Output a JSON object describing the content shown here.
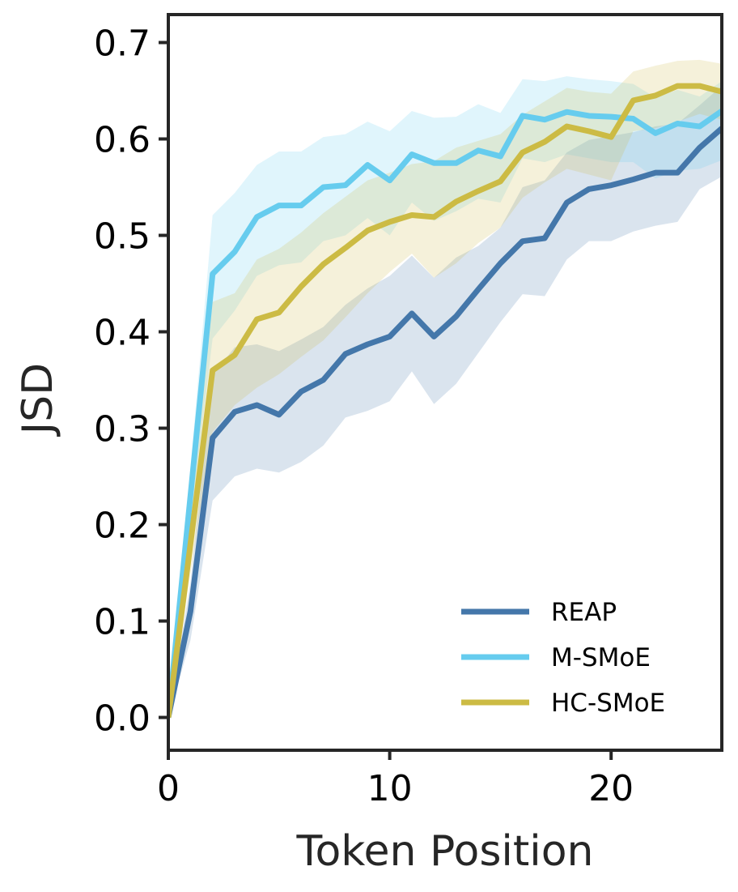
{
  "chart_data": {
    "type": "line",
    "title": "",
    "xlabel": "Token Position",
    "ylabel": "JSD",
    "xlim": [
      0,
      25
    ],
    "ylim": [
      -0.034,
      0.729
    ],
    "xticks": [
      0,
      10,
      20
    ],
    "xtick_labels": [
      "0",
      "10",
      "20"
    ],
    "yticks": [
      0.0,
      0.1,
      0.2,
      0.3,
      0.4,
      0.5,
      0.6,
      0.7
    ],
    "ytick_labels": [
      "0.0",
      "0.1",
      "0.2",
      "0.3",
      "0.4",
      "0.5",
      "0.6",
      "0.7"
    ],
    "grid": false,
    "legend_position": "lower-right",
    "x": [
      0,
      1,
      2,
      3,
      4,
      5,
      6,
      7,
      8,
      9,
      10,
      11,
      12,
      13,
      14,
      15,
      16,
      17,
      18,
      19,
      20,
      21,
      22,
      23,
      24,
      25
    ],
    "series": [
      {
        "name": "REAP",
        "color": "#4477AA",
        "values": [
          0.0,
          0.11,
          0.29,
          0.317,
          0.324,
          0.314,
          0.338,
          0.35,
          0.377,
          0.387,
          0.395,
          0.419,
          0.395,
          0.416,
          0.444,
          0.471,
          0.494,
          0.497,
          0.534,
          0.548,
          0.552,
          0.558,
          0.565,
          0.565,
          0.591,
          0.611
        ],
        "lower": [
          0.0,
          0.08,
          0.225,
          0.25,
          0.258,
          0.254,
          0.265,
          0.282,
          0.311,
          0.318,
          0.328,
          0.359,
          0.325,
          0.346,
          0.378,
          0.41,
          0.439,
          0.437,
          0.475,
          0.494,
          0.494,
          0.504,
          0.51,
          0.514,
          0.548,
          0.561
        ],
        "upper": [
          0.0,
          0.14,
          0.355,
          0.384,
          0.387,
          0.38,
          0.392,
          0.405,
          0.428,
          0.445,
          0.458,
          0.479,
          0.456,
          0.477,
          0.489,
          0.508,
          0.55,
          0.557,
          0.586,
          0.599,
          0.603,
          0.607,
          0.613,
          0.616,
          0.635,
          0.655
        ]
      },
      {
        "name": "M-SMoE",
        "color": "#66CCEE",
        "values": [
          0.0,
          0.23,
          0.46,
          0.483,
          0.519,
          0.531,
          0.531,
          0.55,
          0.552,
          0.573,
          0.557,
          0.584,
          0.575,
          0.575,
          0.588,
          0.582,
          0.624,
          0.62,
          0.628,
          0.624,
          0.623,
          0.621,
          0.606,
          0.616,
          0.613,
          0.629
        ],
        "lower": [
          0.0,
          0.2,
          0.393,
          0.422,
          0.458,
          0.469,
          0.472,
          0.494,
          0.5,
          0.518,
          0.5,
          0.534,
          0.515,
          0.525,
          0.538,
          0.534,
          0.58,
          0.576,
          0.584,
          0.58,
          0.576,
          0.576,
          0.559,
          0.567,
          0.569,
          0.578
        ],
        "upper": [
          0.0,
          0.26,
          0.521,
          0.544,
          0.573,
          0.587,
          0.587,
          0.602,
          0.605,
          0.618,
          0.608,
          0.629,
          0.622,
          0.623,
          0.636,
          0.627,
          0.662,
          0.66,
          0.665,
          0.662,
          0.66,
          0.657,
          0.643,
          0.651,
          0.644,
          0.66
        ]
      },
      {
        "name": "HC-SMoE",
        "color": "#CCBB44",
        "values": [
          0.0,
          0.18,
          0.36,
          0.376,
          0.413,
          0.42,
          0.447,
          0.47,
          0.487,
          0.505,
          0.514,
          0.521,
          0.519,
          0.535,
          0.546,
          0.556,
          0.586,
          0.597,
          0.613,
          0.608,
          0.602,
          0.64,
          0.645,
          0.655,
          0.655,
          0.649
        ],
        "lower": [
          0.0,
          0.15,
          0.296,
          0.324,
          0.342,
          0.356,
          0.374,
          0.391,
          0.415,
          0.44,
          0.462,
          0.481,
          0.456,
          0.471,
          0.492,
          0.508,
          0.539,
          0.555,
          0.569,
          0.563,
          0.557,
          0.608,
          0.611,
          0.618,
          0.626,
          0.62
        ],
        "upper": [
          0.0,
          0.21,
          0.431,
          0.44,
          0.475,
          0.486,
          0.503,
          0.523,
          0.54,
          0.557,
          0.565,
          0.574,
          0.577,
          0.591,
          0.598,
          0.605,
          0.625,
          0.639,
          0.653,
          0.649,
          0.647,
          0.67,
          0.676,
          0.681,
          0.682,
          0.678
        ]
      }
    ]
  }
}
